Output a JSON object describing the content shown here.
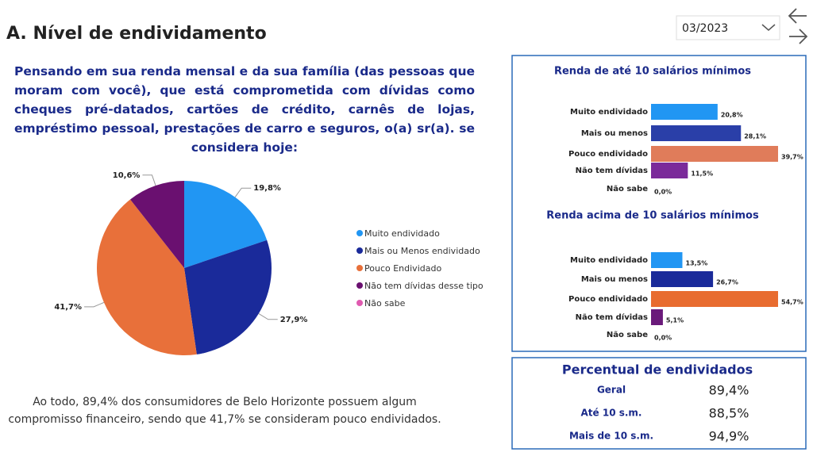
{
  "header": {
    "title": "A. Nível de endividamento",
    "period": "03/2023"
  },
  "question": "Pensando em sua renda mensal e da sua família (das pessoas que moram com você), que está comprometida com dívidas como cheques pré-datados, cartões de crédito, carnês de lojas, empréstimo pessoal, prestações de carro e seguros, o(a) sr(a). se considera hoje:",
  "footer": "Ao todo, 89,4% dos consumidores de Belo Horizonte possuem algum compromisso financeiro, sendo que 41,7% se consideram pouco endividados.",
  "chart_data": [
    {
      "type": "pie",
      "categories": [
        "Muito endividado",
        "Mais ou Menos endividado",
        "Pouco Endividado",
        "Não tem dívidas desse tipo",
        "Não sabe"
      ],
      "values": [
        19.8,
        27.9,
        41.7,
        10.6,
        0
      ],
      "value_labels": [
        "19,8%",
        "27,9%",
        "41,7%",
        "10,6%",
        null
      ],
      "colors": [
        "#2196f3",
        "#1a2a9a",
        "#e8703a",
        "#6a1070",
        "#e05ab0"
      ],
      "legend": "right"
    },
    {
      "type": "bar",
      "title": "Renda de até 10 salários mínimos",
      "categories": [
        "Muito endividado",
        "Mais ou menos",
        "Pouco endividado",
        "Não tem dívidas",
        "Não sabe"
      ],
      "values": [
        20.8,
        28.1,
        39.7,
        11.5,
        0.0
      ],
      "value_labels": [
        "20,8%",
        "28,1%",
        "39,7%",
        "11,5%",
        "0,0%"
      ],
      "colors": [
        "#2196f3",
        "#2a3fa8",
        "#e07c5a",
        "#7b2a9a",
        "#e05ab0"
      ]
    },
    {
      "type": "bar",
      "title": "Renda acima de 10 salários mínimos",
      "categories": [
        "Muito endividado",
        "Mais ou menos",
        "Pouco endividado",
        "Não tem dívidas",
        "Não sabe"
      ],
      "values": [
        13.5,
        26.7,
        54.7,
        5.1,
        0.0
      ],
      "value_labels": [
        "13,5%",
        "26,7%",
        "54,7%",
        "5,1%",
        "0,0%"
      ],
      "colors": [
        "#2196f3",
        "#1a2a9a",
        "#e86c30",
        "#6a1a7a",
        "#e05ab0"
      ]
    }
  ],
  "summary": {
    "title": "Percentual de endividados",
    "rows": [
      [
        "Geral",
        "89,4%"
      ],
      [
        "Até 10 s.m.",
        "88,5%"
      ],
      [
        "Mais de 10 s.m.",
        "94,9%"
      ]
    ]
  }
}
